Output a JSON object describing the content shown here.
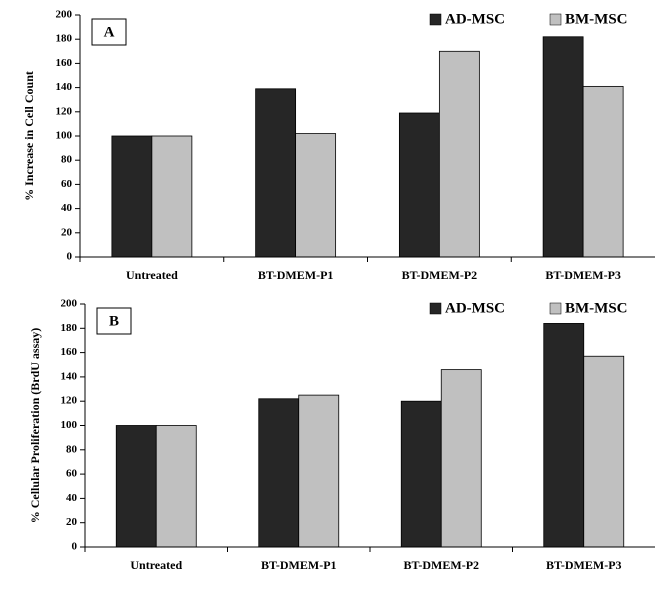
{
  "chart_data": [
    {
      "type": "bar",
      "panel_label": "A",
      "ylabel": "% Increase in Cell Count",
      "categories": [
        "Untreated",
        "BT-DMEM-P1",
        "BT-DMEM-P2",
        "BT-DMEM-P3"
      ],
      "series": [
        {
          "name": "AD-MSC",
          "color": "#262626",
          "values": [
            100,
            139,
            119,
            182
          ]
        },
        {
          "name": "BM-MSC",
          "color": "#c0c0c0",
          "values": [
            100,
            102,
            170,
            141
          ]
        }
      ],
      "ylim": [
        0,
        200
      ],
      "yticks": [
        0,
        20,
        40,
        60,
        80,
        100,
        120,
        140,
        160,
        180,
        200
      ],
      "legend": "upper right"
    },
    {
      "type": "bar",
      "panel_label": "B",
      "ylabel": "% Cellular Proliferation (BrdU assay)",
      "categories": [
        "Untreated",
        "BT-DMEM-P1",
        "BT-DMEM-P2",
        "BT-DMEM-P3"
      ],
      "series": [
        {
          "name": "AD-MSC",
          "color": "#262626",
          "values": [
            100,
            122,
            120,
            184
          ]
        },
        {
          "name": "BM-MSC",
          "color": "#c0c0c0",
          "values": [
            100,
            125,
            146,
            157
          ]
        }
      ],
      "ylim": [
        0,
        200
      ],
      "yticks": [
        0,
        20,
        40,
        60,
        80,
        100,
        120,
        140,
        160,
        180,
        200
      ],
      "legend": "upper right"
    }
  ]
}
